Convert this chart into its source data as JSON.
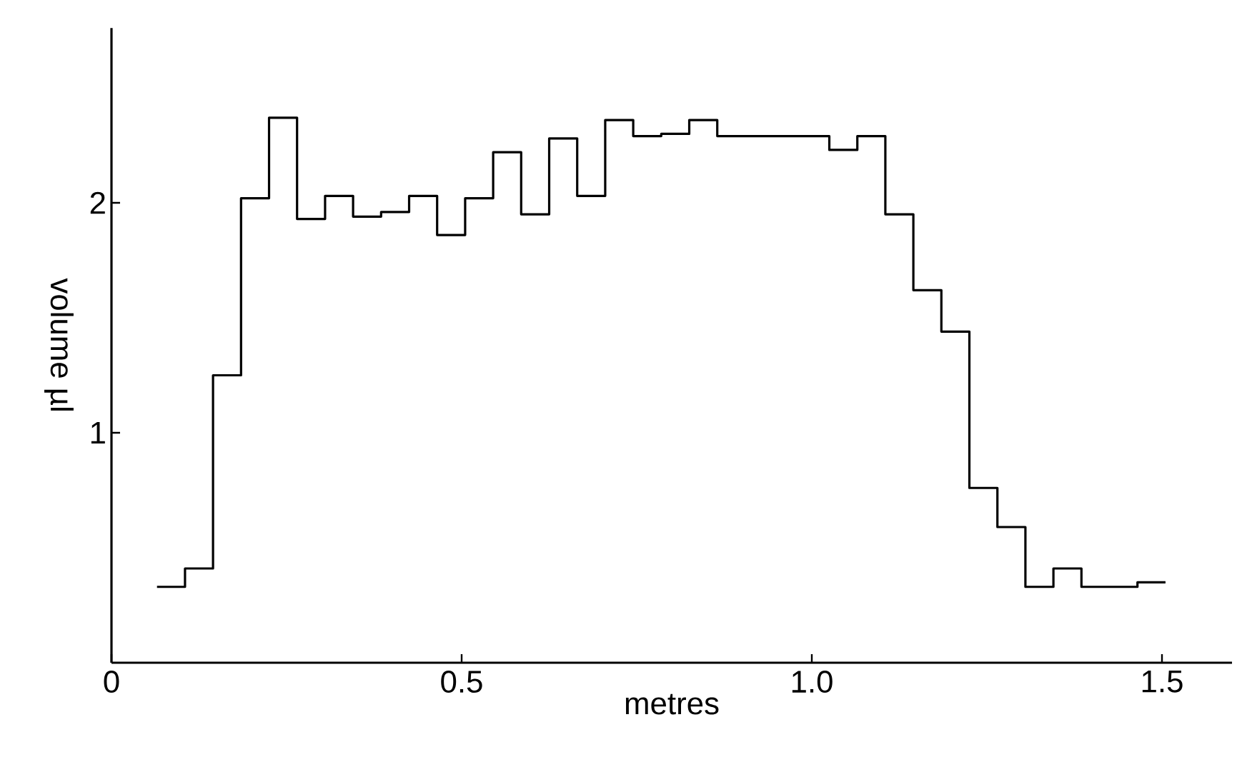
{
  "chart_data": {
    "type": "histogram",
    "xlabel": "metres",
    "ylabel": "volume µl",
    "color": "#000000",
    "bins": [
      0.065,
      0.105,
      0.145,
      0.185,
      0.225,
      0.265,
      0.305,
      0.345,
      0.385,
      0.425,
      0.465,
      0.505,
      0.545,
      0.585,
      0.625,
      0.665,
      0.705,
      0.745,
      0.785,
      0.825,
      0.865,
      0.905,
      0.945,
      0.985,
      1.025,
      1.065,
      1.105,
      1.145,
      1.185,
      1.225,
      1.265,
      1.305,
      1.345,
      1.385,
      1.425,
      1.465,
      1.505
    ],
    "values": [
      0.33,
      0.41,
      1.25,
      2.02,
      2.37,
      1.93,
      2.03,
      1.94,
      1.96,
      2.03,
      1.86,
      2.02,
      2.22,
      1.95,
      2.28,
      2.03,
      2.36,
      2.29,
      2.3,
      2.36,
      2.29,
      2.29,
      2.29,
      2.29,
      2.23,
      2.29,
      1.95,
      1.62,
      1.44,
      0.76,
      0.59,
      0.33,
      0.41,
      0.33,
      0.33,
      0.35
    ],
    "xlim": [
      0,
      1.6
    ],
    "ylim": [
      0,
      2.76
    ],
    "xticks": [
      0,
      0.5,
      {
        "value": 1,
        "label": "1.0"
      },
      1.5
    ],
    "yticks": [
      1,
      2
    ]
  }
}
